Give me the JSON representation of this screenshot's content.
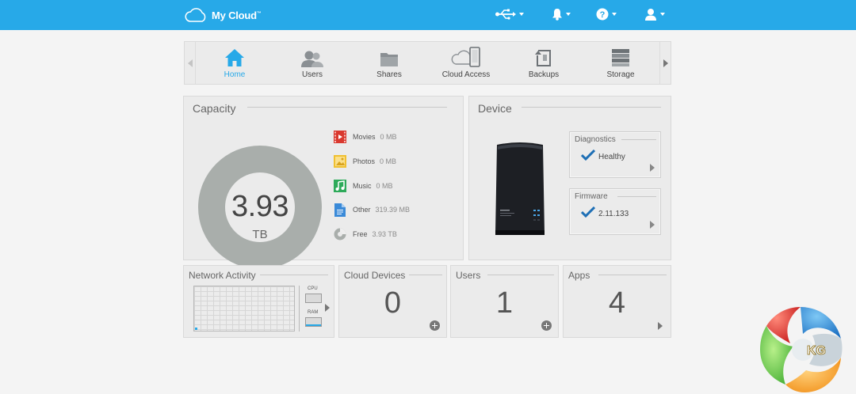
{
  "header": {
    "brand": "My Cloud",
    "trademark": "™",
    "icons": [
      "cloud-icon",
      "usb-icon",
      "bell-icon",
      "help-icon",
      "user-icon"
    ],
    "bg_color": "#27a9e8"
  },
  "nav": {
    "tabs": [
      {
        "label": "Home",
        "icon": "home-icon",
        "active": true
      },
      {
        "label": "Users",
        "icon": "users-icon",
        "active": false
      },
      {
        "label": "Shares",
        "icon": "folder-icon",
        "active": false
      },
      {
        "label": "Cloud Access",
        "icon": "cloud-device-icon",
        "active": false
      },
      {
        "label": "Backups",
        "icon": "backups-icon",
        "active": false
      },
      {
        "label": "Storage",
        "icon": "storage-icon",
        "active": false
      }
    ],
    "accent_color": "#27a9e8"
  },
  "capacity": {
    "title": "Capacity",
    "total": "3.93",
    "unit": "TB",
    "legend": [
      {
        "name": "Movies",
        "value": "0 MB",
        "icon": "movies-icon",
        "color": "#d9382e"
      },
      {
        "name": "Photos",
        "value": "0 MB",
        "icon": "photos-icon",
        "color": "#f0c030"
      },
      {
        "name": "Music",
        "value": "0 MB",
        "icon": "music-icon",
        "color": "#2eaa5a"
      },
      {
        "name": "Other",
        "value": "319.39 MB",
        "icon": "document-icon",
        "color": "#3a8ad8"
      },
      {
        "name": "Free",
        "value": "3.93 TB",
        "icon": "pie-icon",
        "color": "#a9aeab"
      }
    ]
  },
  "device": {
    "title": "Device",
    "diagnostics": {
      "title": "Diagnostics",
      "value": "Healthy"
    },
    "firmware": {
      "title": "Firmware",
      "value": "2.11.133"
    }
  },
  "network": {
    "title": "Network Activity",
    "cpu_label": "CPU",
    "ram_label": "RAM"
  },
  "cloud_devices": {
    "title": "Cloud Devices",
    "count": "0"
  },
  "users": {
    "title": "Users",
    "count": "1"
  },
  "apps": {
    "title": "Apps",
    "count": "4"
  },
  "watermark": {
    "text": "KG"
  }
}
